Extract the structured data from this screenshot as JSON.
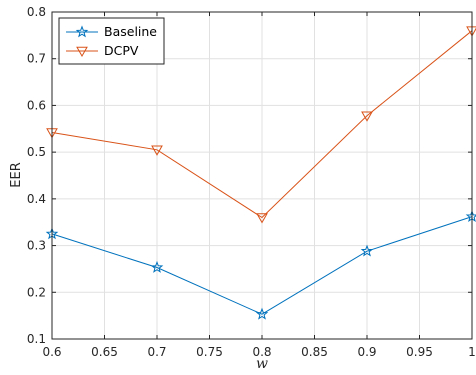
{
  "chart_data": {
    "type": "line",
    "title": "",
    "xlabel": "w",
    "ylabel": "EER",
    "xlim": [
      0.6,
      1.0
    ],
    "ylim": [
      0.1,
      0.8
    ],
    "xticks": [
      0.6,
      0.65,
      0.7,
      0.75,
      0.8,
      0.85,
      0.9,
      0.95,
      1.0
    ],
    "xtick_labels": [
      "0.6",
      "0.65",
      "0.7",
      "0.75",
      "0.8",
      "0.85",
      "0.9",
      "0.95",
      "1"
    ],
    "yticks": [
      0.1,
      0.2,
      0.3,
      0.4,
      0.5,
      0.6,
      0.7,
      0.8
    ],
    "ytick_labels": [
      "0.1",
      "0.2",
      "0.3",
      "0.4",
      "0.5",
      "0.6",
      "0.7",
      "0.8"
    ],
    "grid": true,
    "legend_position": "top-left",
    "x": [
      0.6,
      0.7,
      0.8,
      0.9,
      1.0
    ],
    "series": [
      {
        "name": "Baseline",
        "marker": "star",
        "color": "#0072BD",
        "values": [
          0.325,
          0.253,
          0.153,
          0.288,
          0.362
        ]
      },
      {
        "name": "DCPV",
        "marker": "triangle-down",
        "color": "#D95319",
        "values": [
          0.542,
          0.505,
          0.36,
          0.578,
          0.76
        ]
      }
    ]
  }
}
